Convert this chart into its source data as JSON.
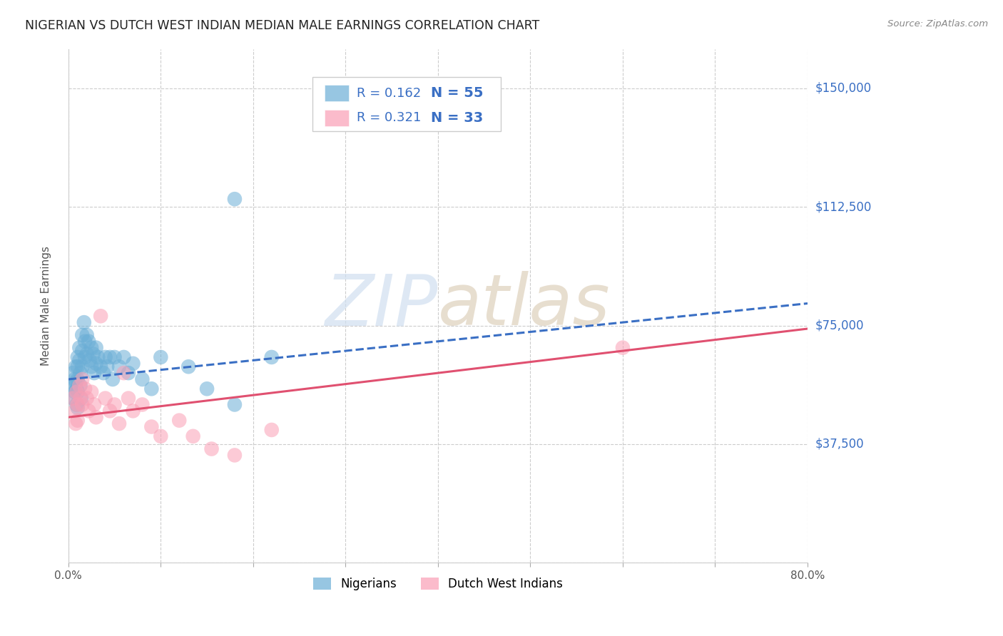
{
  "title": "NIGERIAN VS DUTCH WEST INDIAN MEDIAN MALE EARNINGS CORRELATION CHART",
  "source": "Source: ZipAtlas.com",
  "ylabel": "Median Male Earnings",
  "watermark": "ZIPatlas",
  "background_color": "#ffffff",
  "xlim": [
    0.0,
    0.8
  ],
  "ylim": [
    0,
    162500
  ],
  "yticks": [
    0,
    37500,
    75000,
    112500,
    150000
  ],
  "ytick_labels": [
    "",
    "$37,500",
    "$75,000",
    "$112,500",
    "$150,000"
  ],
  "xticks": [
    0.0,
    0.1,
    0.2,
    0.3,
    0.4,
    0.5,
    0.6,
    0.7,
    0.8
  ],
  "xtick_labels": [
    "0.0%",
    "",
    "",
    "",
    "",
    "",
    "",
    "",
    "80.0%"
  ],
  "grid_color": "#cccccc",
  "nigerian_color": "#6baed6",
  "dutch_color": "#fa9fb5",
  "nigerian_R": 0.162,
  "nigerian_N": 55,
  "dutch_R": 0.321,
  "dutch_N": 33,
  "legend_color": "#3a6fc4",
  "nigerian_scatter_x": [
    0.005,
    0.005,
    0.005,
    0.007,
    0.007,
    0.008,
    0.008,
    0.009,
    0.009,
    0.01,
    0.01,
    0.01,
    0.01,
    0.01,
    0.012,
    0.012,
    0.013,
    0.013,
    0.014,
    0.015,
    0.015,
    0.015,
    0.017,
    0.018,
    0.018,
    0.02,
    0.02,
    0.022,
    0.023,
    0.025,
    0.025,
    0.027,
    0.028,
    0.03,
    0.03,
    0.032,
    0.035,
    0.038,
    0.04,
    0.042,
    0.045,
    0.048,
    0.05,
    0.055,
    0.06,
    0.065,
    0.07,
    0.08,
    0.09,
    0.1,
    0.13,
    0.15,
    0.18,
    0.22,
    0.18
  ],
  "nigerian_scatter_y": [
    60000,
    56000,
    52000,
    58000,
    54000,
    62000,
    57000,
    55000,
    50000,
    65000,
    62000,
    58000,
    54000,
    49000,
    68000,
    64000,
    60000,
    56000,
    52000,
    72000,
    67000,
    62000,
    76000,
    70000,
    65000,
    72000,
    66000,
    70000,
    64000,
    68000,
    62000,
    66000,
    60000,
    68000,
    63000,
    65000,
    62000,
    60000,
    65000,
    62000,
    65000,
    58000,
    65000,
    62000,
    65000,
    60000,
    63000,
    58000,
    55000,
    65000,
    62000,
    55000,
    50000,
    65000,
    115000
  ],
  "dutch_scatter_x": [
    0.005,
    0.007,
    0.008,
    0.009,
    0.01,
    0.01,
    0.012,
    0.013,
    0.015,
    0.015,
    0.018,
    0.02,
    0.022,
    0.025,
    0.028,
    0.03,
    0.035,
    0.04,
    0.045,
    0.05,
    0.055,
    0.06,
    0.065,
    0.07,
    0.08,
    0.09,
    0.1,
    0.12,
    0.135,
    0.155,
    0.18,
    0.22,
    0.6
  ],
  "dutch_scatter_y": [
    52000,
    48000,
    44000,
    54000,
    50000,
    45000,
    56000,
    52000,
    58000,
    50000,
    55000,
    52000,
    48000,
    54000,
    50000,
    46000,
    78000,
    52000,
    48000,
    50000,
    44000,
    60000,
    52000,
    48000,
    50000,
    43000,
    40000,
    45000,
    40000,
    36000,
    34000,
    42000,
    68000
  ],
  "nigerian_line_color": "#3a6fc4",
  "nigerian_line_style": "--",
  "dutch_line_color": "#e05070",
  "dutch_line_style": "-",
  "nigerian_line_x": [
    0.0,
    0.8
  ],
  "nigerian_line_y": [
    58000,
    82000
  ],
  "dutch_line_x": [
    0.0,
    0.8
  ],
  "dutch_line_y": [
    46000,
    74000
  ]
}
